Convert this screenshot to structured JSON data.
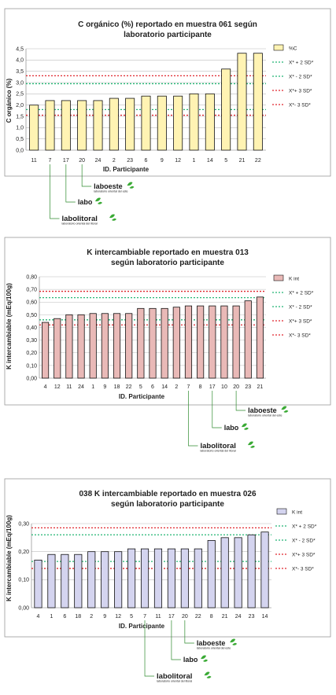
{
  "charts": [
    {
      "type": "bar",
      "title_lines": [
        "C orgánico (%) reportado en muestra 061 según",
        "laboratorio participante"
      ],
      "ylabel": "C orgánico (%)",
      "xlabel": "ID. Participante",
      "categories": [
        "11",
        "7",
        "17",
        "20",
        "24",
        "2",
        "23",
        "6",
        "9",
        "12",
        "1",
        "14",
        "5",
        "21",
        "22"
      ],
      "values": [
        2.0,
        2.2,
        2.2,
        2.2,
        2.2,
        2.3,
        2.3,
        2.4,
        2.4,
        2.4,
        2.5,
        2.5,
        3.6,
        4.3,
        4.3
      ],
      "ylim": [
        0,
        4.5
      ],
      "yticks": [
        "0,0",
        "0,5",
        "1,0",
        "1,5",
        "2,0",
        "2,5",
        "3,0",
        "3,5",
        "4,0",
        "4,5"
      ],
      "ytick_values": [
        0,
        0.5,
        1.0,
        1.5,
        2.0,
        2.5,
        3.0,
        3.5,
        4.0,
        4.5
      ],
      "bar_color": "#fff3b3",
      "legend": [
        "%C",
        "X* + 2 SD*",
        "X* - 2 SD*",
        "X*+ 3 SD*",
        "X*- 3 SD*"
      ],
      "ref_lines": {
        "plus2": 2.95,
        "minus2": 1.8,
        "plus3": 3.3,
        "minus3": 1.55
      },
      "logo_targets": [
        "20",
        "17",
        "7"
      ]
    },
    {
      "type": "bar",
      "title_lines": [
        "K intercambiable reportado en muestra 013",
        "según laboratorio participante"
      ],
      "ylabel": "K intercambiable (mEq/100g)",
      "xlabel": "ID. Participante",
      "categories": [
        "4",
        "12",
        "11",
        "24",
        "1",
        "9",
        "18",
        "22",
        "5",
        "6",
        "14",
        "2",
        "7",
        "8",
        "17",
        "10",
        "20",
        "23",
        "21"
      ],
      "values": [
        0.44,
        0.47,
        0.5,
        0.5,
        0.51,
        0.51,
        0.51,
        0.51,
        0.55,
        0.55,
        0.55,
        0.56,
        0.57,
        0.57,
        0.57,
        0.57,
        0.57,
        0.61,
        0.64
      ],
      "ylim": [
        0,
        0.8
      ],
      "yticks": [
        "0,00",
        "0,10",
        "0,20",
        "0,30",
        "0,40",
        "0,50",
        "0,60",
        "0,70",
        "0,80"
      ],
      "ytick_values": [
        0,
        0.1,
        0.2,
        0.3,
        0.4,
        0.5,
        0.6,
        0.7,
        0.8
      ],
      "bar_color": "#e9b9b7",
      "legend": [
        "K int",
        "X* + 2 SD*",
        "X* - 2 SD*",
        "X*+ 3 SD*",
        "X*- 3 SD*"
      ],
      "ref_lines": {
        "plus2": 0.635,
        "minus2": 0.46,
        "plus3": 0.685,
        "minus3": 0.42
      },
      "logo_targets": [
        "20",
        "17",
        "7"
      ]
    },
    {
      "type": "bar",
      "title_lines": [
        "038 K intercambiable reportado en muestra 026",
        "según laboratorio participante"
      ],
      "ylabel": "K intercambiable (mEq/100g)",
      "xlabel": "ID. Participante",
      "categories": [
        "4",
        "1",
        "6",
        "18",
        "2",
        "9",
        "12",
        "5",
        "7",
        "11",
        "17",
        "20",
        "22",
        "8",
        "21",
        "24",
        "23",
        "14"
      ],
      "values": [
        0.17,
        0.19,
        0.19,
        0.19,
        0.2,
        0.2,
        0.2,
        0.21,
        0.21,
        0.21,
        0.21,
        0.21,
        0.21,
        0.24,
        0.25,
        0.25,
        0.26,
        0.27
      ],
      "ylim": [
        0,
        0.3
      ],
      "yticks": [
        "0,00",
        "0,10",
        "0,20",
        "0,30"
      ],
      "ytick_values": [
        0,
        0.1,
        0.2,
        0.3
      ],
      "bar_color": "#d4d4ef",
      "legend": [
        "K int",
        "X* + 2 SD*",
        "X* - 2 SD*",
        "X*+ 3 SD*",
        "X*- 3 SD*"
      ],
      "ref_lines": {
        "plus2": 0.26,
        "minus2": 0.165,
        "plus3": 0.285,
        "minus3": 0.14
      },
      "logo_targets": [
        "20",
        "17",
        "7"
      ]
    }
  ],
  "logos": [
    {
      "name": "laboeste",
      "sub": "laboratorio oriental del este"
    },
    {
      "name": "labo",
      "sub": ""
    },
    {
      "name": "labolitoral",
      "sub": "laboratorio oriental del litoral"
    }
  ],
  "colors": {
    "green_line": "#22b573",
    "red_line": "#e0262d",
    "leaf": "#3aaa35",
    "grid": "#bdbdbd",
    "leader": "#2e8b2e"
  }
}
